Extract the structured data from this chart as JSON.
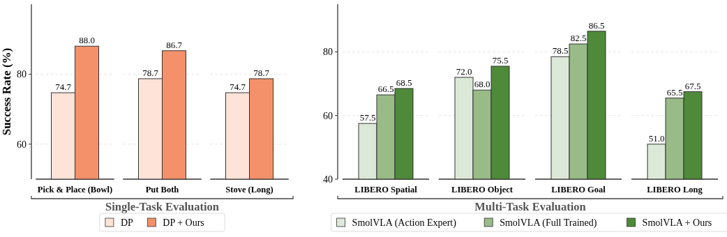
{
  "chart_data": [
    {
      "type": "bar",
      "ylabel": "Success Rate (%)",
      "xlabel": "Single-Task Evaluation",
      "categories": [
        "Pick & Place (Bowl)",
        "Put Both",
        "Stove (Long)"
      ],
      "series": [
        {
          "name": "DP",
          "color": "#fde3d8",
          "values": [
            74.7,
            78.7,
            74.7
          ],
          "value_labels": [
            "74.7",
            "78.7",
            "74.7"
          ]
        },
        {
          "name": "DP + Ours",
          "color": "#f4916a",
          "values": [
            88.0,
            86.7,
            78.7
          ],
          "value_labels": [
            "88.0",
            "86.7",
            "78.7"
          ]
        }
      ],
      "ylim": [
        50,
        100
      ],
      "yticks": [
        60,
        80
      ],
      "grid": "y",
      "legend": "bottom"
    },
    {
      "type": "bar",
      "xlabel": "Multi-Task Evaluation",
      "categories": [
        "LIBERO Spatial",
        "LIBERO Object",
        "LIBERO Goal",
        "LIBERO Long"
      ],
      "series": [
        {
          "name": "SmolVLA (Action Expert)",
          "color": "#dce8d8",
          "values": [
            57.5,
            72.0,
            78.5,
            51.0
          ],
          "value_labels": [
            "57.5",
            "72.0",
            "78.5",
            "51.0"
          ]
        },
        {
          "name": "SmolVLA (Full Trained)",
          "color": "#98bb88",
          "values": [
            66.5,
            68.0,
            82.5,
            65.5
          ],
          "value_labels": [
            "66.5",
            "68.0",
            "82.5",
            "65.5"
          ]
        },
        {
          "name": "SmolVLA + Ours",
          "color": "#4e8a3a",
          "values": [
            68.5,
            75.5,
            86.5,
            67.5
          ],
          "value_labels": [
            "68.5",
            "75.5",
            "86.5",
            "67.5"
          ]
        }
      ],
      "ylim": [
        40,
        95
      ],
      "yticks": [
        40,
        60,
        80
      ],
      "grid": "y",
      "legend": "bottom"
    }
  ]
}
